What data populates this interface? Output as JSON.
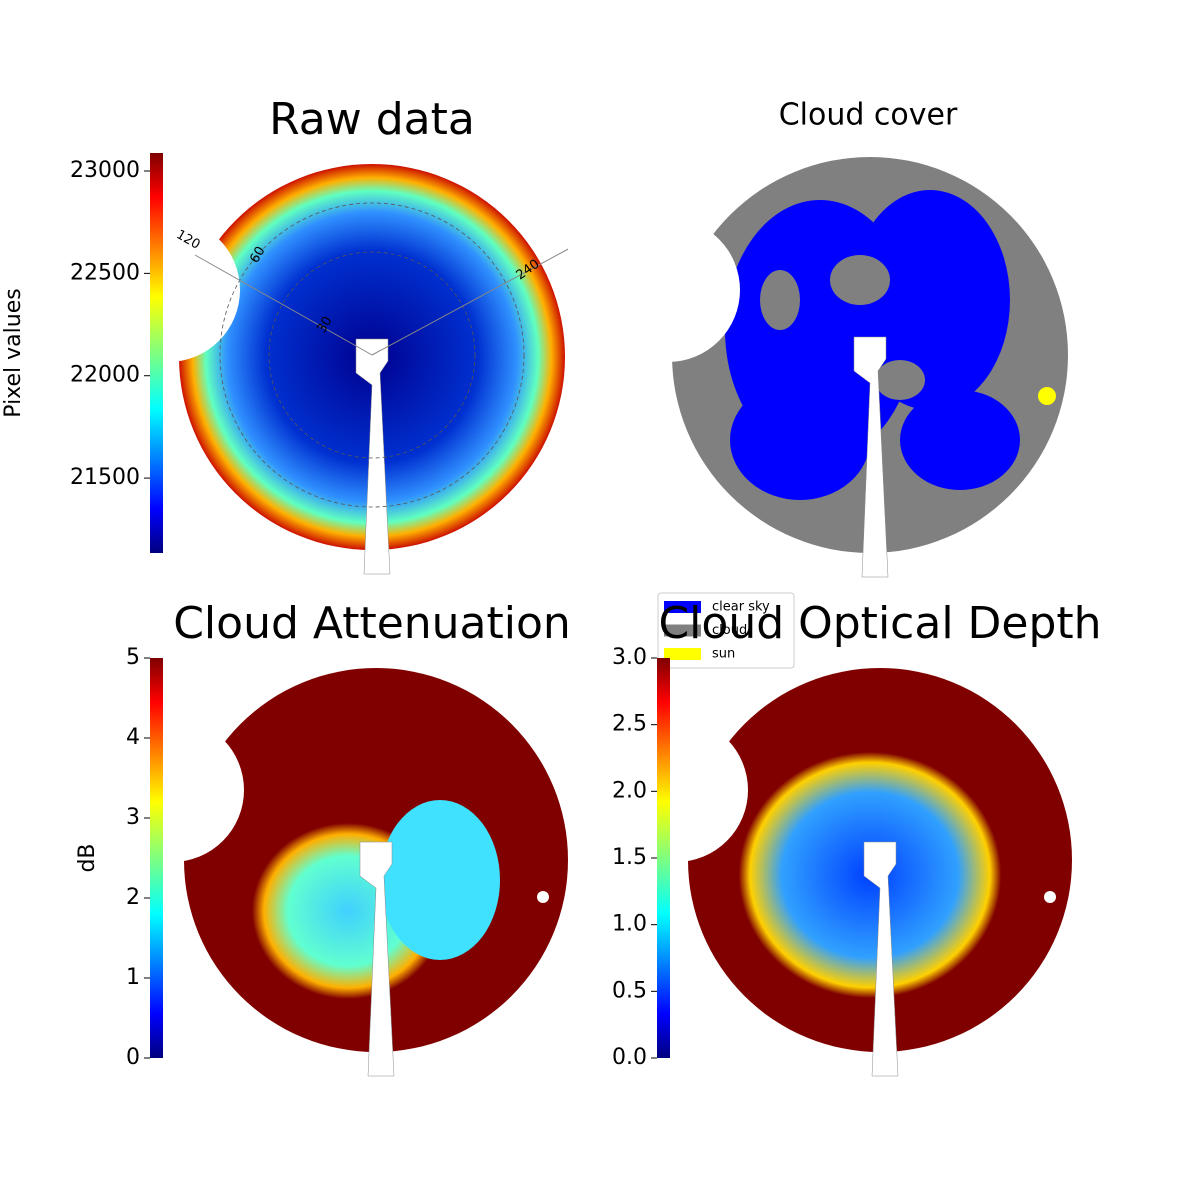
{
  "chart_data": [
    {
      "type": "image",
      "title": "Raw data",
      "ylabel": "Pixel values",
      "ylim": [
        21134,
        23088
      ],
      "yticks": [
        21500,
        22000,
        22500,
        23000
      ],
      "annotations": [
        "120",
        "60",
        "30",
        "240"
      ]
    },
    {
      "type": "image",
      "title": "Cloud cover",
      "series": [
        {
          "name": "clear sky",
          "color": "#0000ff"
        },
        {
          "name": "cloud",
          "color": "#808080"
        },
        {
          "name": "sun",
          "color": "#ffff00"
        }
      ]
    },
    {
      "type": "image",
      "title": "Cloud Attenuation",
      "ylabel": "dB",
      "ylim": [
        0,
        5
      ],
      "yticks": [
        0,
        1,
        2,
        3,
        4,
        5
      ]
    },
    {
      "type": "image",
      "title": "Cloud Optical Depth",
      "ylim": [
        0,
        3
      ],
      "yticks": [
        {
          "value": 0,
          "label": "0.0"
        },
        {
          "value": 0.5,
          "label": "0.5"
        },
        {
          "value": 1,
          "label": "1.0"
        },
        {
          "value": 1.5,
          "label": "1.5"
        },
        {
          "value": 2,
          "label": "2.0"
        },
        {
          "value": 2.5,
          "label": "2.5"
        },
        {
          "value": 3,
          "label": "3.0"
        }
      ]
    }
  ]
}
